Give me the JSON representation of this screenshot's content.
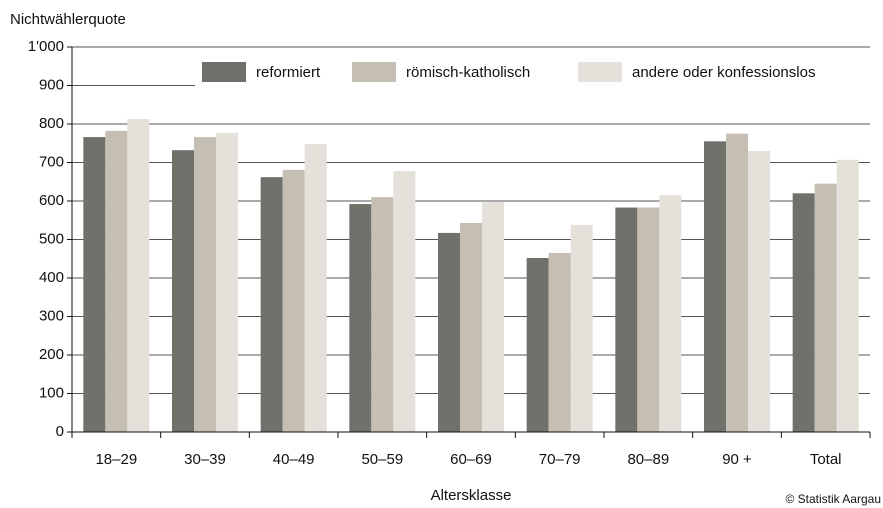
{
  "chart_data": {
    "type": "bar",
    "y_label": "Nichtwählerquote",
    "x_label": "Altersklasse",
    "source": "© Statistik Aargau",
    "categories": [
      "18–29",
      "30–39",
      "40–49",
      "50–59",
      "60–69",
      "70–79",
      "80–89",
      "90 +",
      "Total"
    ],
    "series": [
      {
        "name": "reformiert",
        "color": "#6f716a",
        "values": [
          766,
          732,
          662,
          592,
          517,
          452,
          583,
          755,
          620
        ]
      },
      {
        "name": "römisch-katholisch",
        "color": "#c5beb2",
        "values": [
          782,
          766,
          681,
          610,
          543,
          465,
          583,
          775,
          645
        ]
      },
      {
        "name": "andere oder konfessionslos",
        "color": "#e4e0da",
        "values": [
          813,
          777,
          748,
          678,
          597,
          538,
          615,
          730,
          707
        ]
      }
    ],
    "ylim": [
      0,
      1000
    ],
    "yticks": [
      0,
      100,
      200,
      300,
      400,
      500,
      600,
      700,
      800,
      900,
      {
        "value": 1000,
        "label": "1'000"
      }
    ],
    "grid": true
  }
}
